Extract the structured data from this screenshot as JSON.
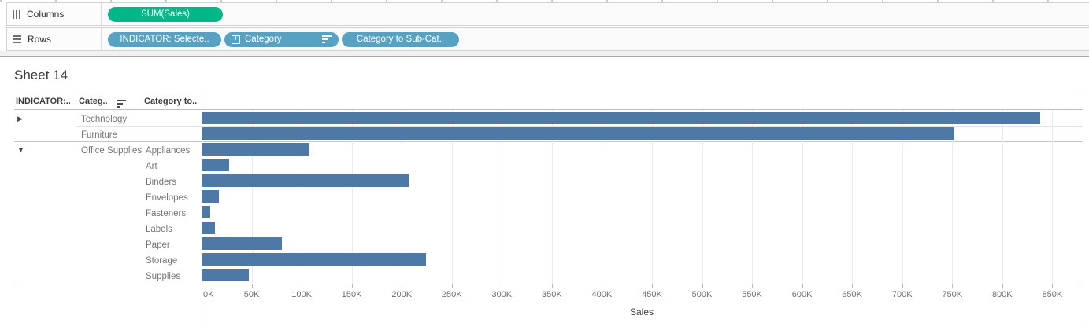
{
  "shelves": {
    "columns": {
      "label": "Columns",
      "pills": [
        {
          "label": "SUM(Sales)",
          "type": "measure-continuous",
          "color": "#00b887"
        }
      ]
    },
    "rows": {
      "label": "Rows",
      "pills": [
        {
          "label": "INDICATOR: Selecte..",
          "type": "dimension",
          "color": "#57a2c2"
        },
        {
          "label": "Category",
          "type": "dimension",
          "color": "#57a2c2",
          "icons": [
            "expand-plus-icon",
            "sort-descending-icon"
          ]
        },
        {
          "label": "Category to Sub-Cat..",
          "type": "dimension",
          "color": "#57a2c2"
        }
      ]
    }
  },
  "sheet": {
    "title": "Sheet 14",
    "column_headers": [
      "INDICATOR:..",
      "Categ..",
      "Category to.."
    ]
  },
  "chart_data": {
    "type": "bar",
    "orientation": "horizontal",
    "title": "Sheet 14",
    "xlabel": "Sales",
    "ylabel": "",
    "grid": true,
    "bar_color": "#4e79a7",
    "x_axis": {
      "min": 0,
      "max": 880000,
      "tick_interval": 50000,
      "tick_labels": [
        "0K",
        "50K",
        "100K",
        "150K",
        "200K",
        "250K",
        "300K",
        "350K",
        "400K",
        "450K",
        "500K",
        "550K",
        "600K",
        "650K",
        "700K",
        "750K",
        "800K",
        "850K"
      ]
    },
    "groups": [
      {
        "indicator": "collapsed",
        "category": "Technology",
        "rows": [
          {
            "subcategory": "",
            "value": 838000
          }
        ]
      },
      {
        "indicator": "none",
        "category": "Furniture",
        "rows": [
          {
            "subcategory": "",
            "value": 752000
          }
        ]
      },
      {
        "indicator": "expanded",
        "category": "Office Supplies",
        "rows": [
          {
            "subcategory": "Appliances",
            "value": 107500
          },
          {
            "subcategory": "Art",
            "value": 27500
          },
          {
            "subcategory": "Binders",
            "value": 207000
          },
          {
            "subcategory": "Envelopes",
            "value": 17000
          },
          {
            "subcategory": "Fasteners",
            "value": 9000
          },
          {
            "subcategory": "Labels",
            "value": 13000
          },
          {
            "subcategory": "Paper",
            "value": 80000
          },
          {
            "subcategory": "Storage",
            "value": 224000
          },
          {
            "subcategory": "Supplies",
            "value": 47000
          }
        ]
      }
    ]
  }
}
